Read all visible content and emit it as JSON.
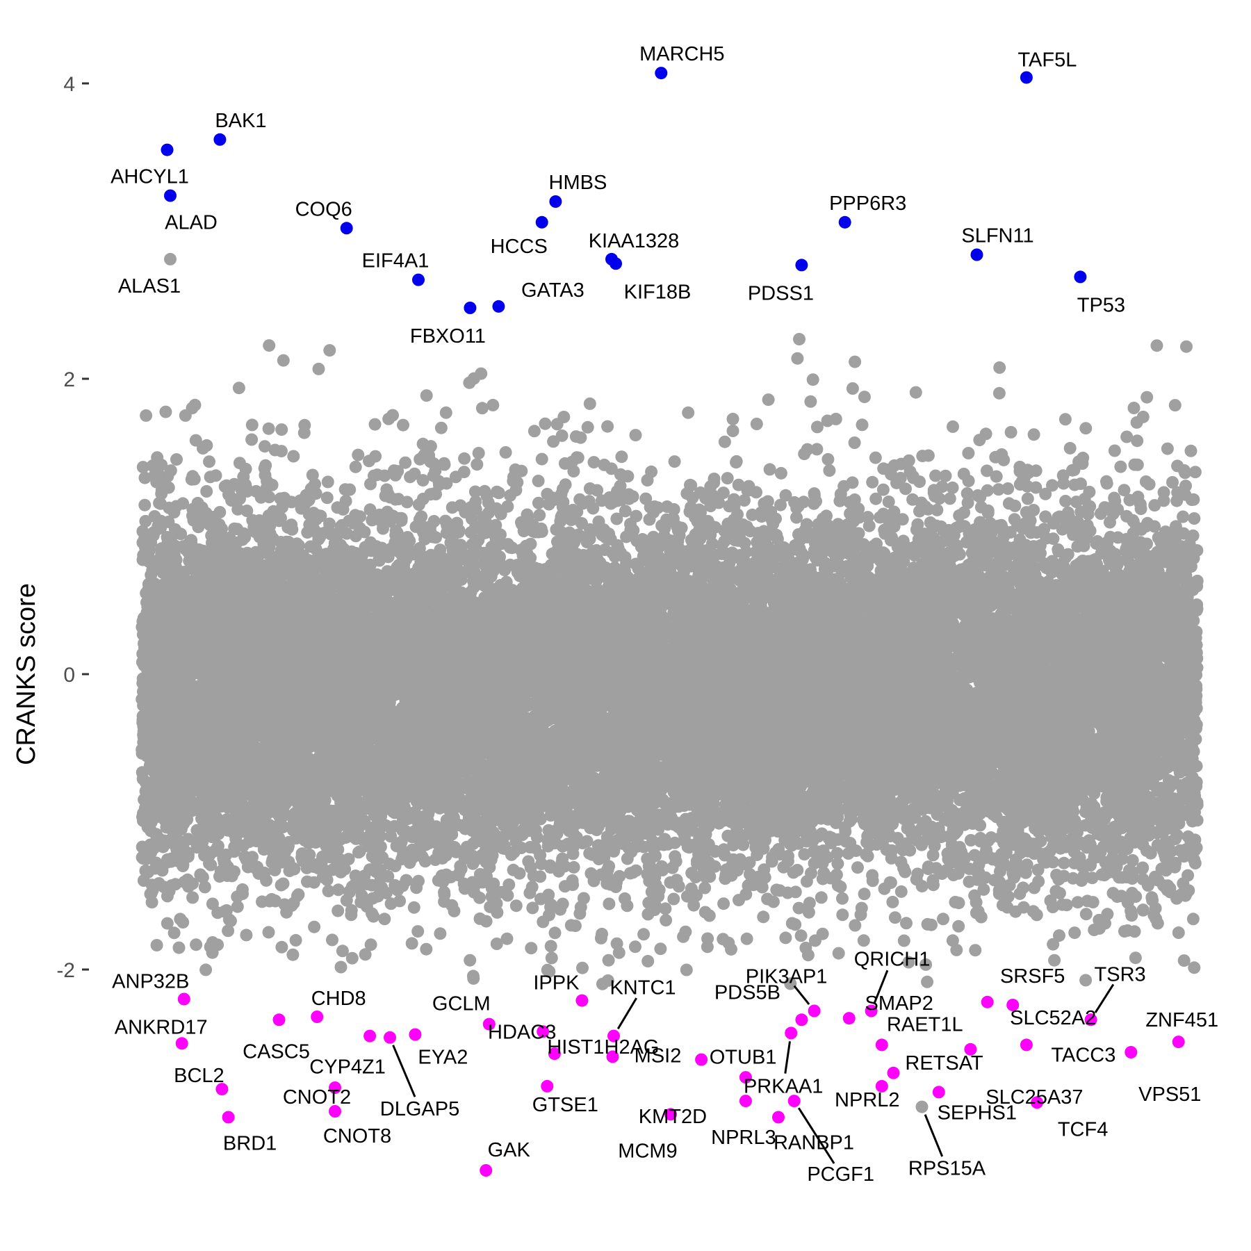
{
  "chart_data": {
    "type": "scatter",
    "title": "",
    "xlabel": "",
    "ylabel": "CRANKS score",
    "xlim": [
      0,
      1
    ],
    "ylim": [
      -3.5,
      4.3
    ],
    "y_ticks": [
      {
        "value": -2,
        "label": "-2"
      },
      {
        "value": 0,
        "label": "0"
      },
      {
        "value": 2,
        "label": "2"
      },
      {
        "value": 4,
        "label": "4"
      }
    ],
    "grid": false,
    "legend": "none",
    "background_point_count": 18000,
    "colors": {
      "background_points": "#a0a0a0",
      "top_hits": "#0000ee",
      "bottom_hits": "#ff00ff",
      "axis_text": "#4d4d4d",
      "label_text": "#000000"
    },
    "labeled_points": [
      {
        "name": "MARCH5",
        "x": 0.492,
        "y": 4.07,
        "group": "top"
      },
      {
        "name": "TAF5L",
        "x": 0.838,
        "y": 4.04,
        "group": "top"
      },
      {
        "name": "BAK1",
        "x": 0.074,
        "y": 3.62,
        "group": "top"
      },
      {
        "name": "AHCYL1",
        "x": 0.024,
        "y": 3.55,
        "group": "top"
      },
      {
        "name": "ALAD",
        "x": 0.027,
        "y": 3.24,
        "group": "top"
      },
      {
        "name": "HMBS",
        "x": 0.392,
        "y": 3.2,
        "group": "top"
      },
      {
        "name": "HCCS",
        "x": 0.379,
        "y": 3.06,
        "group": "top"
      },
      {
        "name": "PPP6R3",
        "x": 0.666,
        "y": 3.06,
        "group": "top"
      },
      {
        "name": "COQ6",
        "x": 0.194,
        "y": 3.02,
        "group": "top"
      },
      {
        "name": "SLFN11",
        "x": 0.791,
        "y": 2.84,
        "group": "top"
      },
      {
        "name": "ALAS1",
        "x": 0.027,
        "y": 2.81,
        "group": "neutral"
      },
      {
        "name": "KIAA1328",
        "x": 0.445,
        "y": 2.81,
        "group": "top"
      },
      {
        "name": "KIF18B",
        "x": 0.449,
        "y": 2.78,
        "group": "top"
      },
      {
        "name": "PDSS1",
        "x": 0.625,
        "y": 2.77,
        "group": "top"
      },
      {
        "name": "TP53",
        "x": 0.889,
        "y": 2.69,
        "group": "top"
      },
      {
        "name": "EIF4A1",
        "x": 0.262,
        "y": 2.67,
        "group": "top"
      },
      {
        "name": "GATA3",
        "x": 0.338,
        "y": 2.49,
        "group": "top"
      },
      {
        "name": "FBXO11",
        "x": 0.311,
        "y": 2.48,
        "group": "top"
      },
      {
        "name": "ANP32B",
        "x": 0.04,
        "y": -2.2,
        "group": "bottom"
      },
      {
        "name": "IPPK",
        "x": 0.417,
        "y": -2.21,
        "group": "bottom"
      },
      {
        "name": "SRSF5",
        "x": 0.801,
        "y": -2.22,
        "group": "bottom"
      },
      {
        "name": "SLC52A2",
        "x": 0.825,
        "y": -2.24,
        "group": "bottom"
      },
      {
        "name": "PIK3AP1",
        "x": 0.637,
        "y": -2.28,
        "group": "bottom"
      },
      {
        "name": "QRICH1",
        "x": 0.691,
        "y": -2.28,
        "group": "bottom"
      },
      {
        "name": "CHD8",
        "x": 0.166,
        "y": -2.32,
        "group": "bottom"
      },
      {
        "name": "SMAP2",
        "x": 0.67,
        "y": -2.33,
        "group": "bottom"
      },
      {
        "name": "CASC5",
        "x": 0.13,
        "y": -2.34,
        "group": "bottom"
      },
      {
        "name": "TSR3",
        "x": 0.899,
        "y": -2.34,
        "group": "bottom"
      },
      {
        "name": "PDS5B",
        "x": 0.625,
        "y": -2.34,
        "group": "bottom"
      },
      {
        "name": "GCLM",
        "x": 0.329,
        "y": -2.37,
        "group": "bottom"
      },
      {
        "name": "HDAC3",
        "x": 0.38,
        "y": -2.42,
        "group": "bottom"
      },
      {
        "name": "PRKAA1",
        "x": 0.615,
        "y": -2.43,
        "group": "bottom"
      },
      {
        "name": "EYA2",
        "x": 0.259,
        "y": -2.44,
        "group": "bottom"
      },
      {
        "name": "KNTC1",
        "x": 0.447,
        "y": -2.45,
        "group": "bottom"
      },
      {
        "name": "CYP4Z1",
        "x": 0.216,
        "y": -2.45,
        "group": "bottom"
      },
      {
        "name": "DLGAP5",
        "x": 0.235,
        "y": -2.46,
        "group": "bottom"
      },
      {
        "name": "ANKRD17",
        "x": 0.038,
        "y": -2.5,
        "group": "bottom"
      },
      {
        "name": "ZNF451",
        "x": 0.982,
        "y": -2.49,
        "group": "bottom"
      },
      {
        "name": "RAET1L",
        "x": 0.701,
        "y": -2.51,
        "group": "bottom"
      },
      {
        "name": "TACC3",
        "x": 0.838,
        "y": -2.51,
        "group": "bottom"
      },
      {
        "name": "SLC25A37",
        "x": 0.785,
        "y": -2.54,
        "group": "bottom"
      },
      {
        "name": "HIST1H2AG",
        "x": 0.391,
        "y": -2.57,
        "group": "bottom"
      },
      {
        "name": "VPS51",
        "x": 0.937,
        "y": -2.56,
        "group": "bottom"
      },
      {
        "name": "MSI2",
        "x": 0.446,
        "y": -2.59,
        "group": "bottom"
      },
      {
        "name": "OTUB1",
        "x": 0.53,
        "y": -2.61,
        "group": "bottom"
      },
      {
        "name": "RETSAT",
        "x": 0.712,
        "y": -2.7,
        "group": "bottom"
      },
      {
        "name": "KMT2D",
        "x": 0.572,
        "y": -2.73,
        "group": "bottom"
      },
      {
        "name": "NPRL2",
        "x": 0.701,
        "y": -2.79,
        "group": "bottom"
      },
      {
        "name": "CNOT2",
        "x": 0.183,
        "y": -2.8,
        "group": "bottom"
      },
      {
        "name": "GTSE1",
        "x": 0.384,
        "y": -2.79,
        "group": "bottom"
      },
      {
        "name": "BCL2",
        "x": 0.076,
        "y": -2.81,
        "group": "bottom"
      },
      {
        "name": "SEPHS1",
        "x": 0.755,
        "y": -2.83,
        "group": "bottom"
      },
      {
        "name": "NPRL3",
        "x": 0.572,
        "y": -2.89,
        "group": "bottom"
      },
      {
        "name": "PCGF1",
        "x": 0.618,
        "y": -2.89,
        "group": "bottom"
      },
      {
        "name": "TCF4",
        "x": 0.848,
        "y": -2.9,
        "group": "bottom"
      },
      {
        "name": "RPS15A",
        "x": 0.739,
        "y": -2.93,
        "group": "neutral"
      },
      {
        "name": "CNOT8",
        "x": 0.183,
        "y": -2.96,
        "group": "bottom"
      },
      {
        "name": "MCM9",
        "x": 0.501,
        "y": -2.98,
        "group": "bottom"
      },
      {
        "name": "BRD1",
        "x": 0.082,
        "y": -3.0,
        "group": "bottom"
      },
      {
        "name": "RANBP1",
        "x": 0.603,
        "y": -3.0,
        "group": "bottom"
      },
      {
        "name": "GAK",
        "x": 0.326,
        "y": -3.36,
        "group": "bottom"
      }
    ]
  }
}
